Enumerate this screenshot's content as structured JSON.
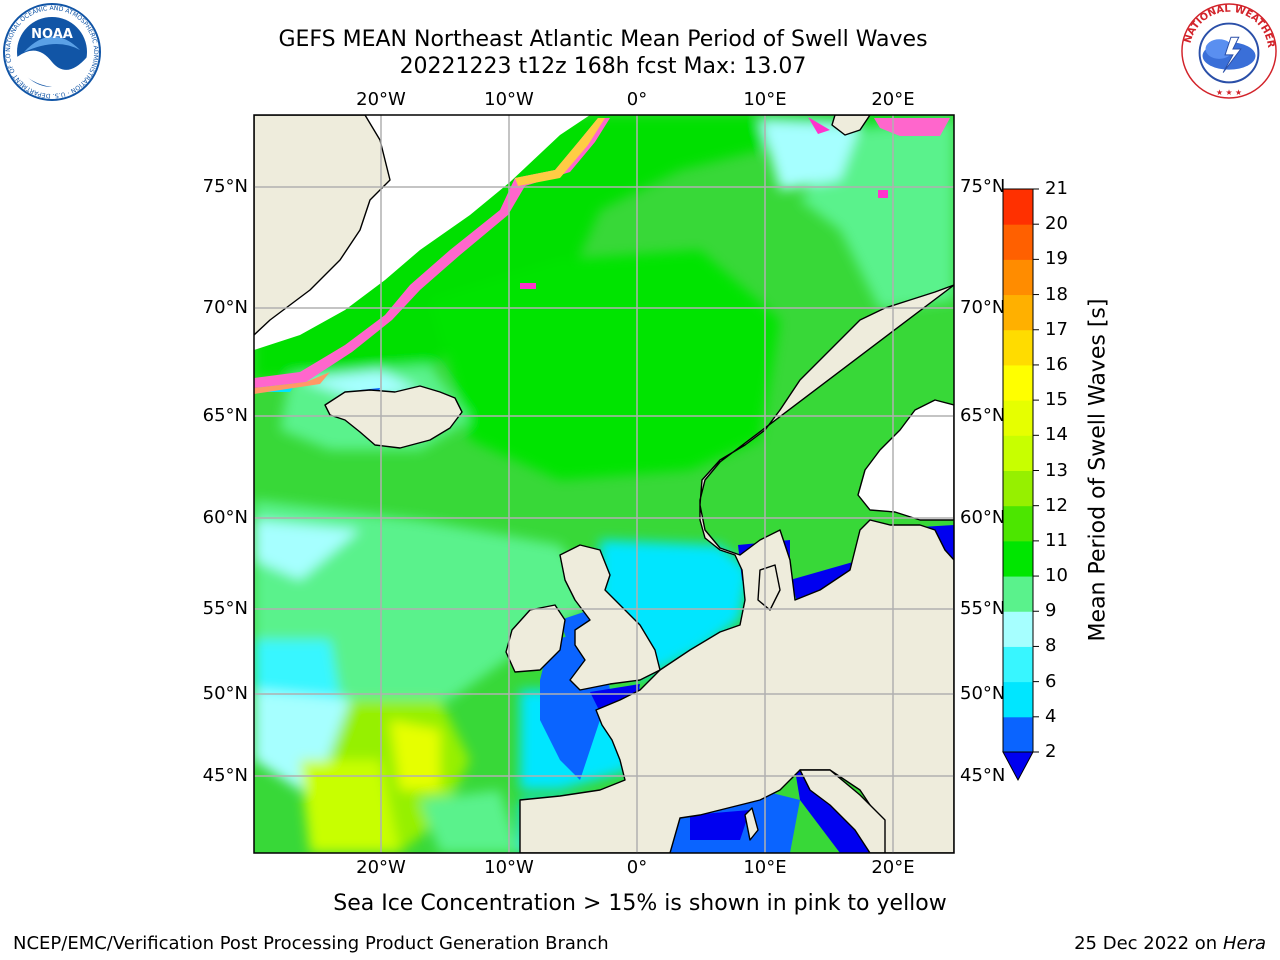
{
  "title": {
    "line1": "GEFS MEAN Northeast Atlantic Mean Period of Swell Waves",
    "line2": "20221223 t12z 168h fcst   Max: 13.07"
  },
  "map": {
    "lon_ticks": [
      "20°W",
      "10°W",
      "0°",
      "10°E",
      "20°E"
    ],
    "lat_ticks": [
      "75°N",
      "70°N",
      "65°N",
      "60°N",
      "55°N",
      "50°N",
      "45°N"
    ],
    "gridlines": true
  },
  "colorbar": {
    "label": "Mean Period of Swell Waves [s]",
    "ticks": [
      "2",
      "4",
      "6",
      "8",
      "9",
      "10",
      "11",
      "12",
      "13",
      "14",
      "15",
      "16",
      "17",
      "18",
      "19",
      "20",
      "21"
    ],
    "colors": [
      "#0a64ff",
      "#00e6ff",
      "#38f6ff",
      "#a6ffff",
      "#5af28c",
      "#00e600",
      "#4ce600",
      "#96f000",
      "#c8ff00",
      "#e6ff00",
      "#ffff00",
      "#ffdc00",
      "#ffb000",
      "#ff8c00",
      "#ff6000",
      "#ff3000",
      "#ff0000"
    ],
    "under_color": "#0000f0"
  },
  "note": "Sea Ice Concentration > 15% is shown in pink to yellow",
  "footer": {
    "credit": "NCEP/EMC/Verification Post Processing Product Generation Branch",
    "date": "25 Dec 2022 on",
    "machine": "Hera"
  },
  "logos": {
    "noaa": {
      "text": "NOAA",
      "ring_text": "NATIONAL OCEANIC AND ATMOSPHERIC ADMINISTRATION · U.S. DEPARTMENT OF COMMERCE",
      "color": "#1155a6"
    },
    "nws": {
      "ring_text": "NATIONAL WEATHER SERVICE",
      "color": "#d2232a"
    }
  },
  "colors": {
    "land": "#eeecdc",
    "grid": "#b0b0b0",
    "coast": "#000000"
  }
}
